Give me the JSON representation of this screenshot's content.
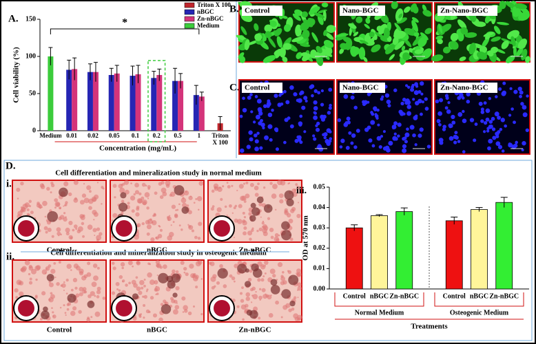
{
  "panels": {
    "A": "A.",
    "B": "B.",
    "C": "C.",
    "D": "D.",
    "i": "i.",
    "ii": "ii."
  },
  "row_b": [
    "Control",
    "Nano-BGC",
    "Zn-Nano-BGC"
  ],
  "row_c": [
    "Control",
    "Nano-BGC",
    "Zn-Nano-BGC"
  ],
  "study_i": {
    "title": "Cell differentiation and mineralization study in normal medium",
    "labels": [
      "Control",
      "nBGC",
      "Zn-nBGC"
    ]
  },
  "study_ii": {
    "title": "Cell differentiation and mineralization study in osteogenic medium",
    "labels": [
      "Control",
      "nBGC",
      "Zn-nBGC"
    ]
  },
  "chart_data": [
    {
      "type": "bar",
      "title": "A.",
      "ylabel": "Cell viability (%)",
      "xlabel": "Concentration (mg/mL)",
      "annotation": "*",
      "categories": [
        "Medium",
        "0.01",
        "0.02",
        "0.05",
        "0.1",
        "0.2",
        "0.5",
        "1",
        "Triton X 100"
      ],
      "series": [
        {
          "name": "Triton X 100",
          "color": "#c0272d",
          "values": [
            null,
            null,
            null,
            null,
            null,
            null,
            null,
            null,
            10
          ],
          "errors": [
            null,
            null,
            null,
            null,
            null,
            null,
            null,
            null,
            9
          ]
        },
        {
          "name": "nBGC",
          "color": "#2626b4",
          "values": [
            null,
            82,
            79,
            75,
            74,
            71,
            67,
            48,
            null
          ],
          "errors": [
            null,
            13,
            11,
            9,
            13,
            9,
            17,
            13,
            null
          ]
        },
        {
          "name": "Zn-nBGC",
          "color": "#d4347a",
          "values": [
            null,
            83,
            79,
            77,
            76,
            75,
            67,
            46,
            null
          ],
          "errors": [
            null,
            15,
            13,
            11,
            12,
            8,
            10,
            6,
            null
          ]
        },
        {
          "name": "Medium",
          "color": "#3ccc3c",
          "values": [
            100,
            null,
            null,
            null,
            null,
            null,
            null,
            null,
            null
          ],
          "errors": [
            12,
            null,
            null,
            null,
            null,
            null,
            null,
            null,
            null
          ]
        }
      ],
      "ylim": [
        0,
        150
      ],
      "yticks": [
        0,
        50,
        100,
        150
      ]
    },
    {
      "type": "bar",
      "title": "iii.",
      "ylabel": "OD at 570 nm",
      "xlabel": "Treatments",
      "categories": [
        "Control",
        "nBGC",
        "Zn-nBGC",
        "Control",
        "nBGC",
        "Zn-nBGC"
      ],
      "groups": [
        "Normal Medium",
        "Osteogenic Medium"
      ],
      "values": [
        0.03,
        0.036,
        0.038,
        0.0335,
        0.039,
        0.0425
      ],
      "errors": [
        0.0015,
        0.0005,
        0.0018,
        0.0018,
        0.001,
        0.0025
      ],
      "colors": [
        "#ee1111",
        "#fff59a",
        "#33ee33",
        "#ee1111",
        "#fff59a",
        "#33ee33"
      ],
      "ylim": [
        0,
        0.05
      ],
      "yticks": [
        {
          "value": 0,
          "label": "0.00"
        },
        0.01,
        0.02,
        0.03,
        0.04,
        0.05
      ]
    }
  ]
}
